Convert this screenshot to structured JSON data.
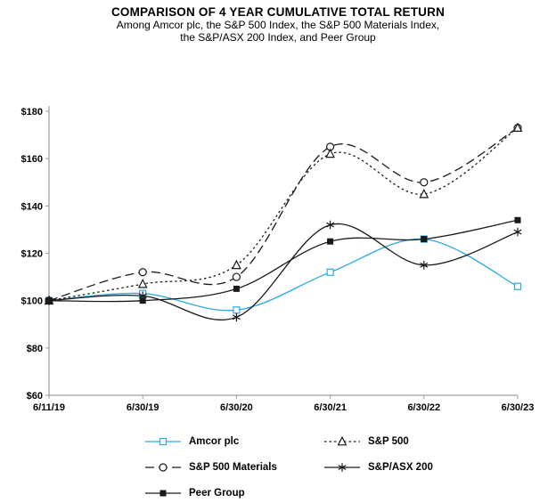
{
  "header": {
    "title": "COMPARISON OF 4 YEAR CUMULATIVE TOTAL RETURN",
    "subtitle_line1": "Among Amcor plc, the S&P 500 Index, the S&P 500 Materials Index,",
    "subtitle_line2": "the S&P/ASX 200 Index, and Peer Group"
  },
  "chart_data": {
    "type": "line",
    "title": "COMPARISON OF 4 YEAR CUMULATIVE TOTAL RETURN",
    "subtitle": [
      "Among Amcor plc, the S&P 500 Index, the S&P 500 Materials Index,",
      "the S&P/ASX 200 Index, and Peer Group"
    ],
    "categories": [
      "6/11/19",
      "6/30/19",
      "6/30/20",
      "6/30/21",
      "6/30/22",
      "6/30/23"
    ],
    "y_tick_values": [
      60,
      80,
      100,
      120,
      140,
      160,
      180
    ],
    "y_tick_labels": [
      "$60",
      "$80",
      "$100",
      "$120",
      "$140",
      "$160",
      "$180"
    ],
    "ylim": [
      60,
      180
    ],
    "grid": false,
    "legend_position": "bottom",
    "line_smoothing": true,
    "axis_color": "#9e9e9e",
    "series": [
      {
        "name": "Amcor plc",
        "values": [
          100,
          103,
          96,
          112,
          126,
          106
        ],
        "color": "#29ABE2",
        "dash": "solid",
        "marker": "open-square"
      },
      {
        "name": "S&P 500 Materials",
        "values": [
          100,
          112,
          110,
          165,
          150,
          173
        ],
        "color": "#1a1a1a",
        "dash": "dashed",
        "marker": "open-circle"
      },
      {
        "name": "S&P 500",
        "values": [
          100,
          107,
          115,
          162,
          145,
          173
        ],
        "color": "#1a1a1a",
        "dash": "dotted",
        "marker": "open-triangle"
      },
      {
        "name": "S&P/ASX 200",
        "values": [
          100,
          102,
          93,
          132,
          115,
          129
        ],
        "color": "#1a1a1a",
        "dash": "solid",
        "marker": "asterisk"
      },
      {
        "name": "Peer Group",
        "values": [
          100,
          100,
          105,
          125,
          126,
          134
        ],
        "color": "#1a1a1a",
        "dash": "solid",
        "marker": "filled-square"
      }
    ],
    "legend_order": [
      "Amcor plc",
      "S&P 500",
      "S&P 500 Materials",
      "S&P/ASX 200",
      "Peer Group"
    ]
  }
}
